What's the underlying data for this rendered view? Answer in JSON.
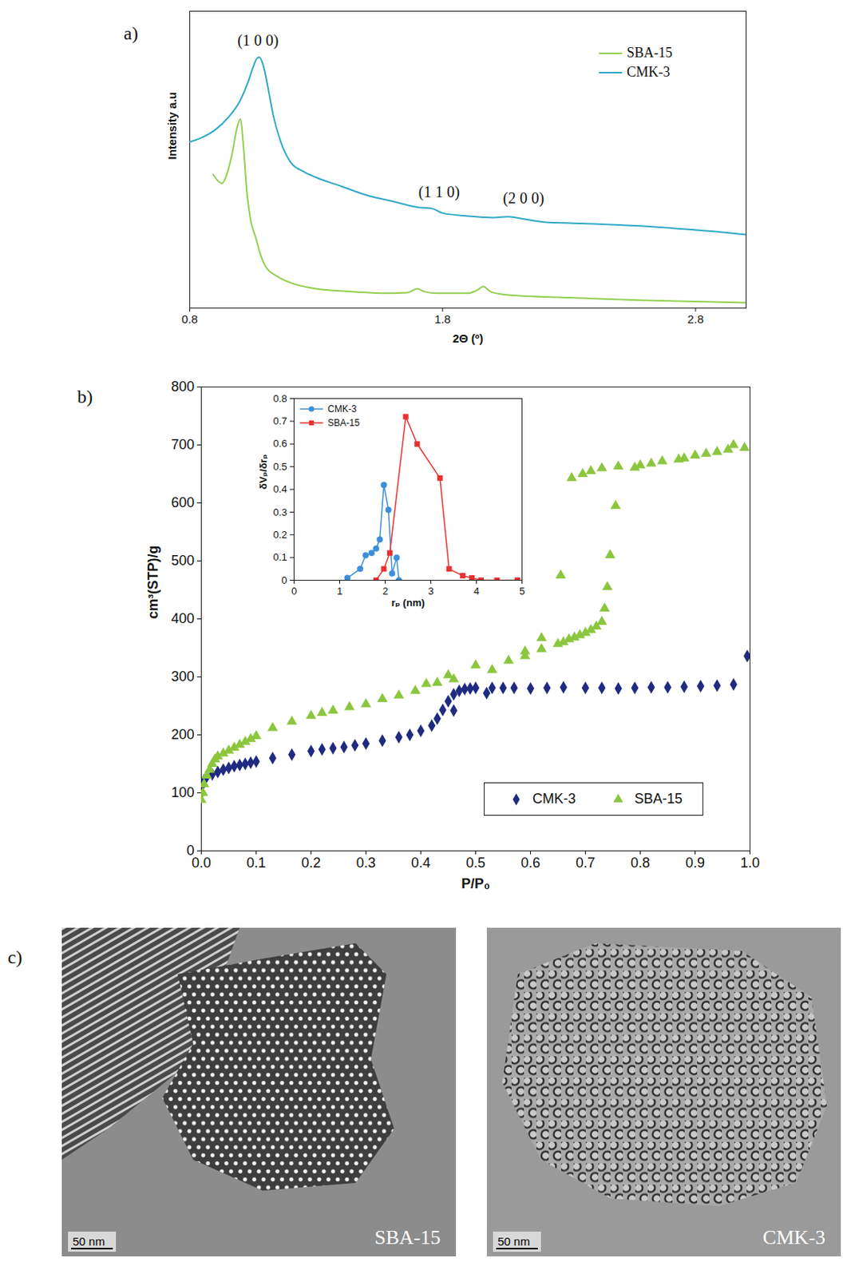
{
  "chart_data": [
    {
      "panel": "a)",
      "type": "line",
      "xlabel": "2Θ (º)",
      "ylabel": "Intensity a.u",
      "xlim": [
        0.8,
        3.0
      ],
      "ylim": [
        0,
        100
      ],
      "xticks": [
        0.8,
        1.8,
        2.8
      ],
      "tick_labels": "x",
      "legend": "upper right",
      "annotations": [
        {
          "text": "(1 0 0)",
          "x": 1.07,
          "y": 90
        },
        {
          "text": "(1 1 0)",
          "x": 1.786,
          "y": 39
        },
        {
          "text": "(2 0 0)",
          "x": 2.12,
          "y": 37
        }
      ],
      "series": [
        {
          "name": "SBA-15",
          "color": "#92d050",
          "x": [
            0.893,
            0.91,
            0.927,
            0.95,
            0.97,
            0.985,
            1.0,
            1.012,
            1.025,
            1.04,
            1.06,
            1.08,
            1.1,
            1.15,
            1.2,
            1.3,
            1.45,
            1.6,
            1.66,
            1.7,
            1.73,
            1.78,
            1.9,
            1.94,
            1.96,
            1.99,
            2.05,
            2.3,
            2.6,
            3.0
          ],
          "values": [
            45,
            43,
            42,
            46,
            53,
            60,
            63.7,
            55,
            40,
            30,
            24,
            18,
            14,
            10.5,
            8.5,
            6.5,
            5.5,
            5,
            5.2,
            6.5,
            5.5,
            5,
            5,
            6.2,
            7.3,
            5.5,
            4.5,
            3.5,
            2.6,
            1.8
          ]
        },
        {
          "name": "CMK-3",
          "color": "#2fa9c6",
          "x": [
            0.8,
            0.85,
            0.9,
            0.95,
            1.0,
            1.03,
            1.05,
            1.065,
            1.075,
            1.09,
            1.11,
            1.13,
            1.16,
            1.2,
            1.25,
            1.3,
            1.4,
            1.5,
            1.6,
            1.7,
            1.76,
            1.8,
            1.9,
            2.0,
            2.06,
            2.12,
            2.2,
            2.35,
            2.5,
            2.65,
            2.8,
            2.9,
            3.0
          ],
          "values": [
            56,
            57.5,
            60,
            64,
            70,
            76,
            81,
            84,
            84.5,
            82,
            74,
            65,
            56,
            49,
            46,
            44,
            41,
            38,
            36,
            34,
            33.5,
            32,
            31,
            30.5,
            30.8,
            30,
            29,
            28.5,
            28,
            27.3,
            26.3,
            25.6,
            24.7
          ]
        }
      ]
    },
    {
      "panel": "b)",
      "type": "scatter",
      "xlabel": "P/P₀",
      "ylabel": "cm³(STP)/g",
      "xlim": [
        0,
        1.0
      ],
      "ylim": [
        0,
        800
      ],
      "xticks": [
        {
          "value": 0,
          "label": "0.0"
        },
        0.1,
        0.2,
        0.3,
        0.4,
        0.5,
        0.6,
        0.7,
        0.8,
        0.9,
        {
          "value": 1.0,
          "label": "1.0"
        }
      ],
      "yticks": [
        0,
        100,
        200,
        300,
        400,
        500,
        600,
        700,
        800
      ],
      "legend": "lower right",
      "series": [
        {
          "name": "CMK-3",
          "color": "#1f2a80",
          "marker": "diamond",
          "x": [
            0.0,
            0.003,
            0.005,
            0.01,
            0.02,
            0.03,
            0.04,
            0.05,
            0.06,
            0.07,
            0.08,
            0.09,
            0.1,
            0.13,
            0.165,
            0.2,
            0.22,
            0.24,
            0.26,
            0.28,
            0.3,
            0.33,
            0.36,
            0.38,
            0.4,
            0.42,
            0.43,
            0.44,
            0.46,
            0.45,
            0.46,
            0.47,
            0.48,
            0.49,
            0.5,
            0.52,
            0.53,
            0.55,
            0.57,
            0.6,
            0.63,
            0.66,
            0.7,
            0.73,
            0.76,
            0.79,
            0.82,
            0.85,
            0.88,
            0.91,
            0.94,
            0.97,
            0.995
          ],
          "values": [
            100,
            115,
            122,
            128,
            132,
            136,
            140,
            143,
            146,
            148,
            150,
            152,
            154,
            160,
            166,
            172,
            175,
            177,
            179,
            182,
            185,
            190,
            196,
            200,
            207,
            216,
            228,
            243,
            242,
            258,
            270,
            276,
            279,
            280,
            281,
            272,
            281,
            281,
            281,
            280,
            281,
            282,
            281,
            281,
            280,
            281,
            282,
            282,
            283,
            284,
            285,
            287,
            336
          ]
        },
        {
          "name": "SBA-15",
          "color": "#8cc63f",
          "marker": "triangle",
          "x": [
            0.0,
            0.003,
            0.005,
            0.01,
            0.015,
            0.02,
            0.025,
            0.03,
            0.04,
            0.05,
            0.06,
            0.07,
            0.08,
            0.09,
            0.1,
            0.13,
            0.165,
            0.2,
            0.22,
            0.24,
            0.27,
            0.3,
            0.33,
            0.36,
            0.39,
            0.41,
            0.43,
            0.45,
            0.46,
            0.5,
            0.53,
            0.56,
            0.59,
            0.59,
            0.62,
            0.62,
            0.65,
            0.66,
            0.67,
            0.68,
            0.69,
            0.7,
            0.71,
            0.72,
            0.73,
            0.735,
            0.74,
            0.745,
            0.755,
            0.655,
            0.675,
            0.695,
            0.71,
            0.73,
            0.76,
            0.79,
            0.8,
            0.82,
            0.84,
            0.87,
            0.88,
            0.9,
            0.92,
            0.94,
            0.96,
            0.97,
            0.99
          ],
          "values": [
            88,
            100,
            115,
            130,
            140,
            150,
            158,
            163,
            168,
            173,
            178,
            183,
            188,
            193,
            198,
            212,
            223,
            233,
            238,
            242,
            248,
            253,
            262,
            268,
            276,
            288,
            290,
            303,
            296,
            320,
            312,
            328,
            336,
            344,
            348,
            367,
            357,
            360,
            365,
            368,
            372,
            376,
            381,
            387,
            395,
            418,
            455,
            510,
            595,
            475,
            643,
            650,
            655,
            660,
            663,
            661,
            665,
            668,
            672,
            675,
            677,
            682,
            685,
            688,
            692,
            700,
            695
          ]
        }
      ],
      "inset": {
        "type": "line",
        "xlabel": "rₚ (nm)",
        "ylabel": "δVₚ/δrₚ",
        "xlim": [
          0,
          5
        ],
        "ylim": [
          0,
          0.8
        ],
        "xticks": [
          0,
          1,
          2,
          3,
          4,
          5
        ],
        "yticks": [
          0,
          0.1,
          0.2,
          0.3,
          0.4,
          0.5,
          0.6,
          0.7,
          0.8
        ],
        "legend": "upper left",
        "series": [
          {
            "name": "CMK-3",
            "color": "#3d8fd8",
            "marker": "circle",
            "x": [
              1.17,
              1.45,
              1.57,
              1.7,
              1.8,
              1.88,
              1.97,
              2.07,
              2.15,
              2.25,
              2.3
            ],
            "values": [
              0.01,
              0.05,
              0.11,
              0.12,
              0.14,
              0.18,
              0.42,
              0.31,
              0.03,
              0.1,
              0.0
            ]
          },
          {
            "name": "SBA-15",
            "color": "#e8302f",
            "marker": "square",
            "x": [
              1.8,
              1.97,
              2.1,
              2.45,
              2.7,
              3.2,
              3.4,
              3.7,
              3.9,
              4.1,
              4.45,
              4.9
            ],
            "values": [
              0.0,
              0.05,
              0.12,
              0.72,
              0.6,
              0.45,
              0.05,
              0.02,
              0.01,
              0.0,
              0.0,
              0.0
            ]
          }
        ]
      }
    }
  ],
  "panel_c": {
    "panel": "c)",
    "images": [
      {
        "label": "SBA-15",
        "scale_bar": "50 nm"
      },
      {
        "label": "CMK-3",
        "scale_bar": "50 nm"
      }
    ]
  }
}
